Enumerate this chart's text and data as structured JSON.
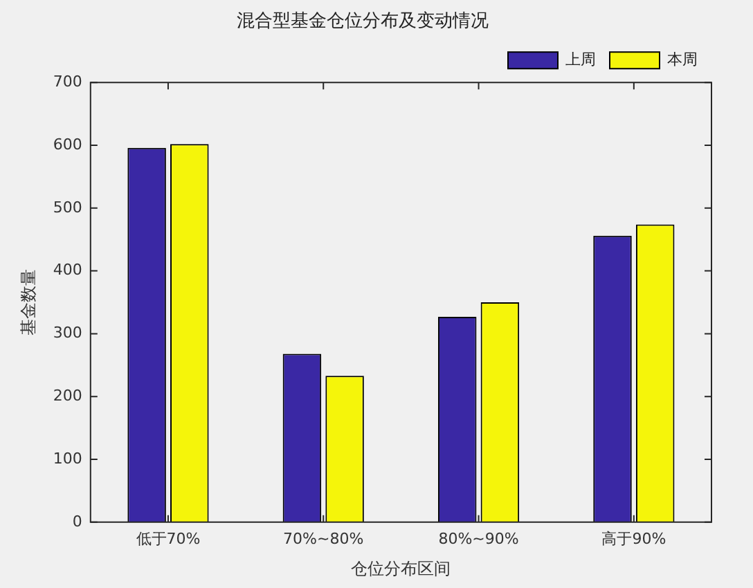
{
  "chart_data": {
    "type": "bar",
    "title": "混合型基金仓位分布及变动情况",
    "xlabel": "仓位分布区间",
    "ylabel": "基金数量",
    "categories": [
      "低于70%",
      "70%~80%",
      "80%~90%",
      "高于90%"
    ],
    "series": [
      {
        "name": "上周",
        "color": "#3a28a4",
        "values": [
          596,
          268,
          327,
          456
        ]
      },
      {
        "name": "本周",
        "color": "#f5f50a",
        "values": [
          602,
          233,
          350,
          474
        ]
      }
    ],
    "ylim": [
      0,
      700
    ],
    "yticks": [
      0,
      100,
      200,
      300,
      400,
      500,
      600,
      700
    ],
    "grid": false,
    "legend": "top right"
  }
}
